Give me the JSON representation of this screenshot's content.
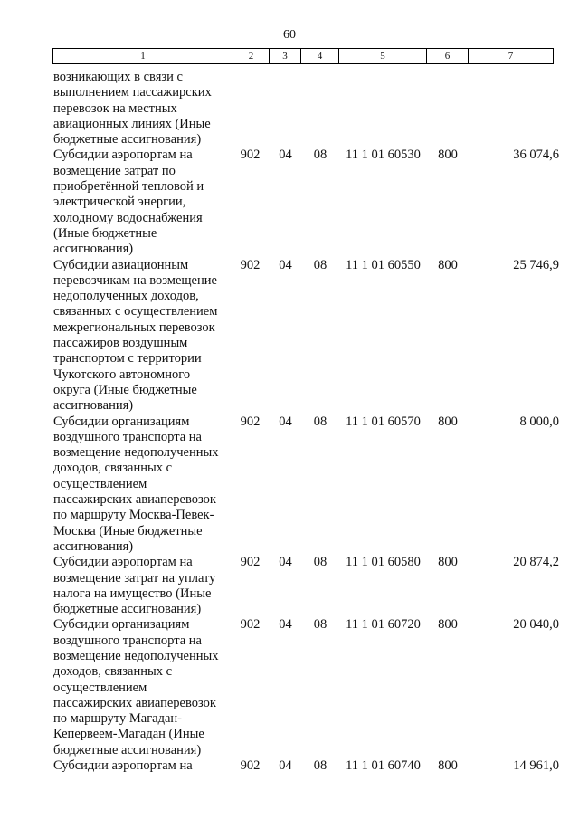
{
  "page_number": "60",
  "table": {
    "column_headers": [
      "1",
      "2",
      "3",
      "4",
      "5",
      "6",
      "7"
    ],
    "rows": [
      {
        "col1": "возникающих в связи с\nвыполнением пассажирских\nперевозок на местных\nавиационных линиях (Иные\nбюджетные ассигнования)",
        "col2": "",
        "col3": "",
        "col4": "",
        "col5": "",
        "col6": "",
        "col7": ""
      },
      {
        "col1": "Субсидии аэропортам на\nвозмещение затрат по\nприобретённой тепловой и\nэлектрической энергии,\nхолодному водоснабжения\n(Иные бюджетные\nассигнования)",
        "col2": "902",
        "col3": "04",
        "col4": "08",
        "col5": "11 1 01 60530",
        "col6": "800",
        "col7": "36 074,6"
      },
      {
        "col1": "Субсидии авиационным\nперевозчикам на возмещение\nнедополученных доходов,\nсвязанных с осуществлением\nмежрегиональных перевозок\nпассажиров воздушным\nтранспортом с территории\nЧукотского автономного\nокруга (Иные бюджетные\nассигнования)",
        "col2": "902",
        "col3": "04",
        "col4": "08",
        "col5": "11 1 01 60550",
        "col6": "800",
        "col7": "25 746,9"
      },
      {
        "col1": "Субсидии организациям\nвоздушного транспорта на\nвозмещение недополученных\nдоходов, связанных с\nосуществлением\nпассажирских авиаперевозок\nпо маршруту Москва-Певек-\nМосква (Иные бюджетные\nассигнования)",
        "col2": "902",
        "col3": "04",
        "col4": "08",
        "col5": "11 1 01 60570",
        "col6": "800",
        "col7": "8 000,0"
      },
      {
        "col1": "Субсидии аэропортам на\nвозмещение затрат на уплату\nналога на имущество (Иные\nбюджетные ассигнования)",
        "col2": "902",
        "col3": "04",
        "col4": "08",
        "col5": "11 1 01 60580",
        "col6": "800",
        "col7": "20 874,2"
      },
      {
        "col1": "Субсидии организациям\nвоздушного транспорта на\nвозмещение недополученных\nдоходов, связанных с\nосуществлением\nпассажирских авиаперевозок\nпо маршруту Магадан-\nКепервеем-Магадан (Иные\nбюджетные ассигнования)",
        "col2": "902",
        "col3": "04",
        "col4": "08",
        "col5": "11 1 01 60720",
        "col6": "800",
        "col7": "20 040,0"
      },
      {
        "col1": "Субсидии аэропортам на",
        "col2": "902",
        "col3": "04",
        "col4": "08",
        "col5": "11 1 01 60740",
        "col6": "800",
        "col7": "14 961,0"
      }
    ]
  }
}
